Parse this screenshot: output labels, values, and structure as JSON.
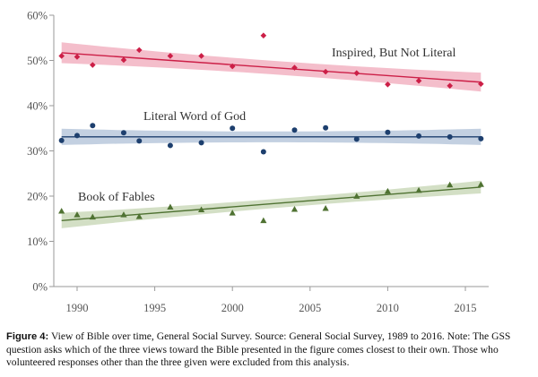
{
  "chart_data": {
    "type": "scatter",
    "title": "",
    "xlabel": "",
    "ylabel": "",
    "xlim": [
      1988.5,
      2016.5
    ],
    "ylim": [
      0,
      60
    ],
    "x_ticks": [
      1990,
      1995,
      2000,
      2005,
      2010,
      2015
    ],
    "x_tick_labels": [
      "1990",
      "1995",
      "2000",
      "2005",
      "2010",
      "2015"
    ],
    "y_ticks": [
      0,
      10,
      20,
      30,
      40,
      50,
      60
    ],
    "y_tick_labels": [
      "0%",
      "10%",
      "20%",
      "30%",
      "40%",
      "50%",
      "60%"
    ],
    "series": [
      {
        "name": "Inspired, But Not Literal",
        "label": "Inspired, But Not Literal",
        "marker": "diamond",
        "color": "#cc1f47",
        "band_color": "#f2b3c2",
        "x": [
          1989,
          1990,
          1991,
          1993,
          1994,
          1996,
          1998,
          2000,
          2002,
          2004,
          2006,
          2008,
          2010,
          2012,
          2014,
          2016
        ],
        "values": [
          51.0,
          50.8,
          49.0,
          50.1,
          52.3,
          51.0,
          51.0,
          48.7,
          55.5,
          48.4,
          47.5,
          47.2,
          44.7,
          45.5,
          44.4,
          44.8
        ],
        "fit": [
          51.7,
          45.2
        ],
        "band_halfwidth": [
          2.3,
          1.5,
          2.1
        ]
      },
      {
        "name": "Literal Word of God",
        "label": "Literal Word of God",
        "marker": "circle",
        "color": "#1d3f6e",
        "band_color": "#b8c8dc",
        "x": [
          1989,
          1990,
          1991,
          1993,
          1994,
          1996,
          1998,
          2000,
          2002,
          2004,
          2006,
          2008,
          2010,
          2012,
          2014,
          2016
        ],
        "values": [
          32.3,
          33.4,
          35.6,
          34.0,
          32.2,
          31.2,
          31.8,
          35.0,
          29.8,
          34.6,
          35.1,
          32.6,
          34.1,
          33.3,
          33.1,
          32.7
        ],
        "fit": [
          33.1,
          33.1
        ],
        "band_halfwidth": [
          1.8,
          1.2,
          1.8
        ]
      },
      {
        "name": "Book of Fables",
        "label": "Book of Fables",
        "marker": "triangle",
        "color": "#4f7232",
        "band_color": "#cbd9bb",
        "x": [
          1989,
          1990,
          1991,
          1993,
          1994,
          1996,
          1998,
          2000,
          2002,
          2004,
          2006,
          2008,
          2010,
          2012,
          2014,
          2016
        ],
        "values": [
          16.7,
          15.9,
          15.4,
          15.9,
          15.5,
          17.6,
          17.0,
          16.3,
          14.6,
          17.1,
          17.3,
          20.0,
          21.1,
          21.3,
          22.5,
          22.6
        ],
        "fit": [
          14.6,
          22.0
        ],
        "band_halfwidth": [
          1.7,
          1.0,
          1.4
        ]
      }
    ]
  },
  "caption": {
    "label": "Figure 4:",
    "text": " View of Bible over time, General Social Survey. Source: General Social Survey, 1989 to 2016. Note: The GSS question asks which of the three views toward the Bible presented in the figure comes closest to their own. Those who volunteered responses other than the three given were excluded from this analysis."
  }
}
